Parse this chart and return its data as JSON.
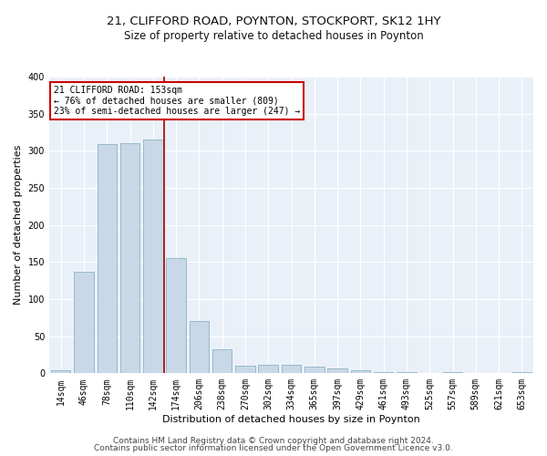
{
  "title1": "21, CLIFFORD ROAD, POYNTON, STOCKPORT, SK12 1HY",
  "title2": "Size of property relative to detached houses in Poynton",
  "xlabel": "Distribution of detached houses by size in Poynton",
  "ylabel": "Number of detached properties",
  "categories": [
    "14sqm",
    "46sqm",
    "78sqm",
    "110sqm",
    "142sqm",
    "174sqm",
    "206sqm",
    "238sqm",
    "270sqm",
    "302sqm",
    "334sqm",
    "365sqm",
    "397sqm",
    "429sqm",
    "461sqm",
    "493sqm",
    "525sqm",
    "557sqm",
    "589sqm",
    "621sqm",
    "653sqm"
  ],
  "values": [
    4,
    137,
    309,
    310,
    315,
    155,
    70,
    32,
    10,
    12,
    12,
    9,
    7,
    4,
    2,
    2,
    0,
    2,
    0,
    0,
    2
  ],
  "bar_color": "#c8d8e8",
  "bar_edge_color": "#7aaabb",
  "vline_x": 4.5,
  "vline_color": "#aa0000",
  "annotation_text": "21 CLIFFORD ROAD: 153sqm\n← 76% of detached houses are smaller (809)\n23% of semi-detached houses are larger (247) →",
  "annotation_box_color": "#ffffff",
  "annotation_box_edge": "#cc0000",
  "footer1": "Contains HM Land Registry data © Crown copyright and database right 2024.",
  "footer2": "Contains public sector information licensed under the Open Government Licence v3.0.",
  "ylim": [
    0,
    400
  ],
  "yticks": [
    0,
    50,
    100,
    150,
    200,
    250,
    300,
    350,
    400
  ],
  "bg_color": "#eaf0f8",
  "grid_color": "#ffffff",
  "title1_fontsize": 9.5,
  "title2_fontsize": 8.5,
  "xlabel_fontsize": 8,
  "ylabel_fontsize": 8,
  "tick_fontsize": 7,
  "footer_fontsize": 6.5
}
